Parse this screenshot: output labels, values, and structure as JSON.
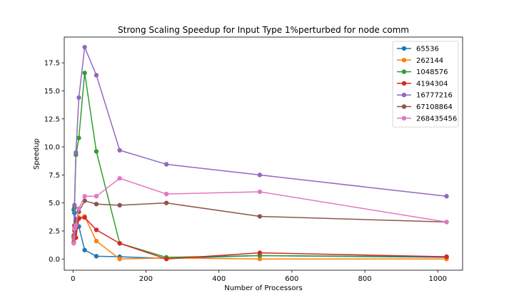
{
  "chart_data": {
    "type": "line",
    "title": "Strong Scaling Speedup for Input Type 1%perturbed for node comm",
    "xlabel": "Number of Processors",
    "ylabel": "Speedup",
    "xlim": [
      -24,
      1068
    ],
    "ylim": [
      -1.0,
      19.8
    ],
    "xticks": [
      0,
      200,
      400,
      600,
      800,
      1000
    ],
    "yticks": [
      0.0,
      2.5,
      5.0,
      7.5,
      10.0,
      12.5,
      15.0,
      17.5
    ],
    "grid": false,
    "legend_position": "top-right",
    "x": [
      2,
      4,
      8,
      16,
      32,
      64,
      128,
      256,
      512,
      1024
    ],
    "series": [
      {
        "name": "65536",
        "color": "#1f77b4",
        "values": [
          4.4,
          4.1,
          3.5,
          2.9,
          0.8,
          0.25,
          0.2,
          0.05,
          0.3,
          0.15
        ]
      },
      {
        "name": "262144",
        "color": "#ff7f0e",
        "values": [
          1.8,
          2.8,
          3.3,
          3.7,
          3.8,
          1.6,
          0.0,
          0.1,
          0.0,
          0.0
        ]
      },
      {
        "name": "1048576",
        "color": "#2ca02c",
        "values": [
          2.0,
          4.6,
          9.3,
          10.8,
          16.6,
          9.6,
          1.4,
          0.15,
          0.3,
          0.2
        ]
      },
      {
        "name": "4194304",
        "color": "#d62728",
        "values": [
          2.1,
          3.0,
          1.9,
          3.6,
          3.7,
          2.6,
          1.4,
          0.0,
          0.55,
          0.2
        ]
      },
      {
        "name": "16777216",
        "color": "#9467bd",
        "values": [
          2.0,
          4.8,
          9.5,
          14.4,
          18.9,
          16.4,
          9.7,
          8.45,
          7.5,
          5.6
        ]
      },
      {
        "name": "67108864",
        "color": "#8c564b",
        "values": [
          1.5,
          2.5,
          3.4,
          4.2,
          5.2,
          4.9,
          4.8,
          5.0,
          3.8,
          3.3
        ]
      },
      {
        "name": "268435456",
        "color": "#e377c2",
        "values": [
          1.4,
          2.7,
          3.0,
          4.5,
          5.6,
          5.6,
          7.2,
          5.8,
          6.0,
          3.3
        ]
      }
    ]
  }
}
